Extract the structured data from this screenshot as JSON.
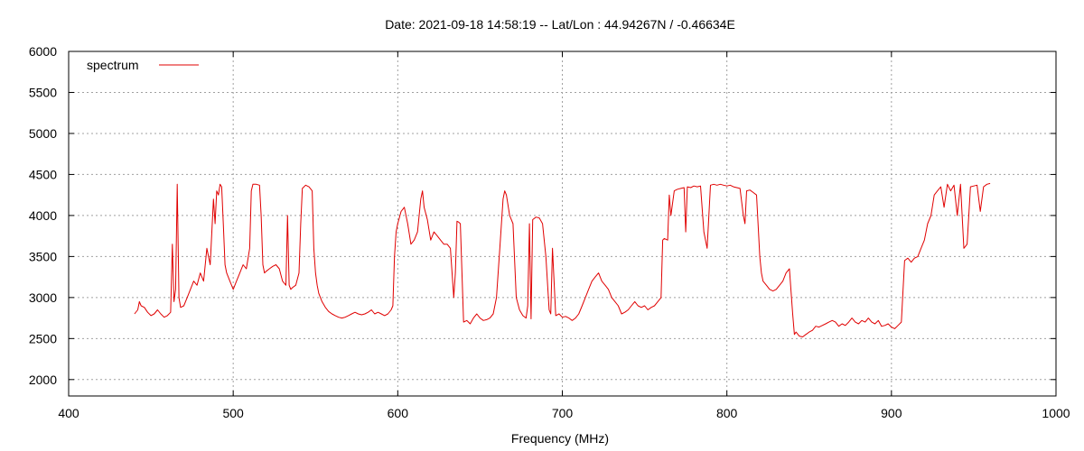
{
  "chart_data": {
    "type": "line",
    "title": "Date: 2021-09-18 14:58:19  --  Lat/Lon : 44.94267N / -0.46634E",
    "xlabel": "Frequency (MHz)",
    "ylabel": "",
    "xlim": [
      400,
      1000
    ],
    "ylim": [
      1800,
      6000
    ],
    "xticks": [
      400,
      500,
      600,
      700,
      800,
      900,
      1000
    ],
    "yticks": [
      2000,
      2500,
      3000,
      3500,
      4000,
      4500,
      5000,
      5500,
      6000
    ],
    "grid": true,
    "legend_position": "top-left",
    "series": [
      {
        "name": "spectrum",
        "color": "#e00000",
        "x": [
          440,
          442,
          443,
          444,
          446,
          448,
          450,
          452,
          454,
          456,
          458,
          460,
          462,
          463,
          464,
          465,
          466,
          467,
          468,
          470,
          472,
          474,
          476,
          478,
          480,
          482,
          484,
          486,
          488,
          489,
          490,
          491,
          492,
          493,
          494,
          495,
          496,
          498,
          500,
          502,
          504,
          506,
          508,
          510,
          511,
          512,
          514,
          516,
          517,
          518,
          519,
          520,
          522,
          524,
          526,
          528,
          530,
          532,
          533,
          534,
          535,
          536,
          538,
          540,
          541,
          542,
          544,
          546,
          548,
          549,
          550,
          551,
          552,
          554,
          556,
          558,
          560,
          562,
          564,
          566,
          568,
          570,
          572,
          574,
          576,
          578,
          580,
          582,
          584,
          586,
          588,
          590,
          592,
          594,
          596,
          597,
          598,
          599,
          600,
          602,
          604,
          606,
          608,
          610,
          612,
          614,
          615,
          616,
          618,
          620,
          622,
          624,
          626,
          628,
          630,
          632,
          634,
          635,
          636,
          637,
          638,
          640,
          642,
          644,
          646,
          648,
          650,
          652,
          654,
          656,
          658,
          660,
          662,
          664,
          665,
          666,
          668,
          670,
          672,
          674,
          676,
          678,
          679,
          680,
          681,
          682,
          684,
          686,
          688,
          690,
          692,
          693,
          694,
          696,
          698,
          700,
          702,
          704,
          706,
          708,
          710,
          712,
          714,
          716,
          718,
          720,
          722,
          724,
          726,
          728,
          730,
          732,
          734,
          736,
          738,
          740,
          742,
          744,
          746,
          748,
          750,
          752,
          754,
          756,
          758,
          760,
          761,
          762,
          764,
          765,
          766,
          768,
          770,
          772,
          774,
          775,
          776,
          778,
          780,
          782,
          784,
          786,
          788,
          790,
          792,
          794,
          796,
          798,
          800,
          802,
          804,
          806,
          808,
          810,
          811,
          812,
          814,
          816,
          818,
          820,
          821,
          822,
          824,
          826,
          828,
          830,
          832,
          834,
          836,
          838,
          840,
          841,
          842,
          844,
          846,
          848,
          850,
          852,
          854,
          856,
          858,
          860,
          862,
          864,
          866,
          868,
          870,
          872,
          874,
          876,
          878,
          880,
          882,
          884,
          886,
          888,
          890,
          892,
          894,
          896,
          898,
          900,
          902,
          904,
          906,
          908,
          910,
          912,
          914,
          916,
          918,
          920,
          922,
          924,
          926,
          928,
          930,
          932,
          934,
          936,
          938,
          940,
          942,
          944,
          946,
          948,
          950,
          952,
          954,
          956,
          958,
          960
        ],
        "y": [
          2800,
          2850,
          2950,
          2900,
          2880,
          2820,
          2780,
          2800,
          2850,
          2800,
          2760,
          2780,
          2820,
          3650,
          2950,
          3100,
          4380,
          3000,
          2880,
          2900,
          3000,
          3100,
          3200,
          3150,
          3300,
          3200,
          3600,
          3400,
          4200,
          3900,
          4300,
          4250,
          4380,
          4350,
          3900,
          3400,
          3300,
          3200,
          3100,
          3200,
          3300,
          3400,
          3350,
          3600,
          4300,
          4380,
          4380,
          4370,
          4000,
          3400,
          3300,
          3320,
          3350,
          3380,
          3400,
          3350,
          3200,
          3150,
          4000,
          3150,
          3100,
          3120,
          3150,
          3300,
          3900,
          4330,
          4370,
          4350,
          4300,
          3600,
          3300,
          3150,
          3050,
          2950,
          2880,
          2830,
          2800,
          2780,
          2760,
          2750,
          2760,
          2780,
          2800,
          2820,
          2800,
          2790,
          2800,
          2820,
          2850,
          2800,
          2820,
          2800,
          2780,
          2800,
          2850,
          2900,
          3500,
          3800,
          3900,
          4050,
          4100,
          3900,
          3650,
          3700,
          3800,
          4200,
          4300,
          4100,
          3950,
          3700,
          3800,
          3750,
          3700,
          3650,
          3650,
          3600,
          3000,
          3300,
          3930,
          3920,
          3900,
          2700,
          2720,
          2680,
          2750,
          2800,
          2750,
          2720,
          2730,
          2750,
          2800,
          3000,
          3600,
          4200,
          4300,
          4250,
          4000,
          3900,
          3000,
          2850,
          2780,
          2750,
          2900,
          3900,
          2740,
          3950,
          3980,
          3970,
          3900,
          3500,
          2850,
          2800,
          3600,
          2780,
          2800,
          2760,
          2770,
          2750,
          2720,
          2750,
          2800,
          2900,
          3000,
          3100,
          3200,
          3250,
          3300,
          3200,
          3150,
          3100,
          3000,
          2950,
          2900,
          2800,
          2820,
          2850,
          2900,
          2950,
          2900,
          2880,
          2900,
          2850,
          2880,
          2900,
          2950,
          3000,
          3700,
          3720,
          3700,
          4250,
          4000,
          4300,
          4320,
          4330,
          4340,
          3800,
          4350,
          4340,
          4360,
          4350,
          4360,
          3800,
          3600,
          4370,
          4380,
          4370,
          4380,
          4370,
          4360,
          4370,
          4350,
          4340,
          4330,
          4000,
          3900,
          4300,
          4310,
          4280,
          4250,
          3500,
          3300,
          3200,
          3150,
          3100,
          3080,
          3100,
          3150,
          3200,
          3300,
          3350,
          2800,
          2550,
          2580,
          2530,
          2520,
          2550,
          2580,
          2600,
          2650,
          2640,
          2660,
          2680,
          2700,
          2720,
          2700,
          2650,
          2680,
          2660,
          2700,
          2750,
          2700,
          2680,
          2720,
          2700,
          2750,
          2700,
          2680,
          2720,
          2650,
          2660,
          2680,
          2640,
          2620,
          2660,
          2700,
          3450,
          3480,
          3430,
          3480,
          3500,
          3600,
          3700,
          3900,
          4000,
          4250,
          4300,
          4350,
          4100,
          4380,
          4300,
          4370,
          4000,
          4380,
          3600,
          3650,
          4350,
          4360,
          4370,
          4050,
          4350,
          4380,
          4390
        ]
      }
    ]
  }
}
